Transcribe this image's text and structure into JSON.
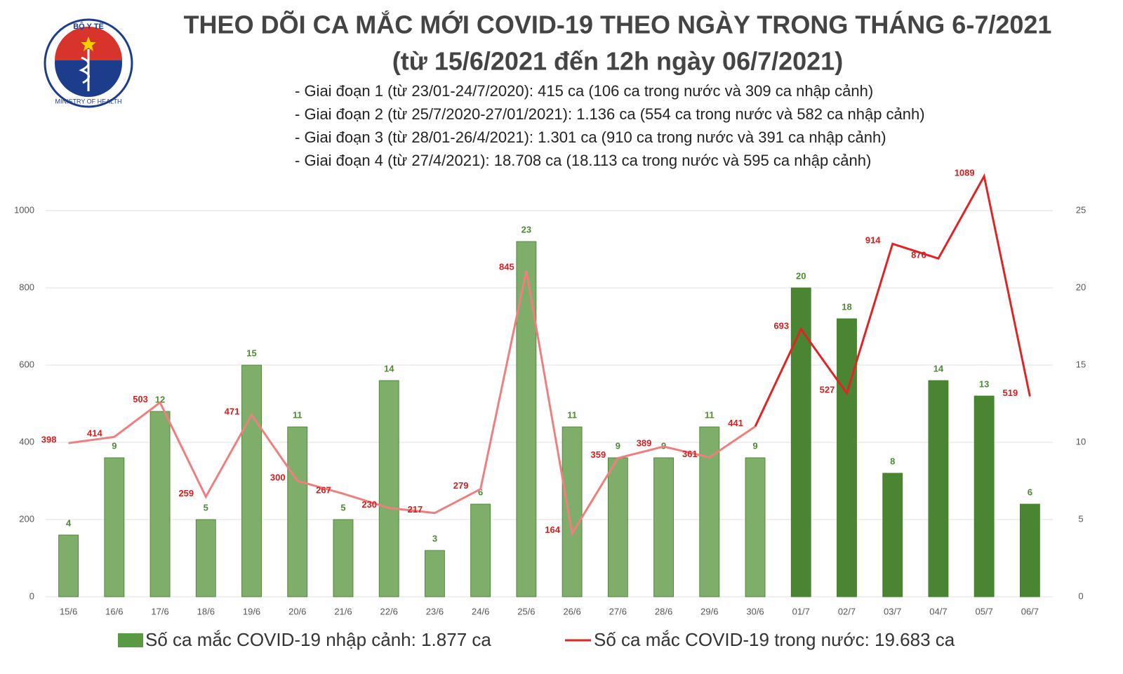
{
  "chart_data": {
    "type": "bar-line",
    "title": "THEO DÕI CA MẮC MỚI COVID-19 THEO NGÀY TRONG THÁNG 6-7/2021",
    "subtitle": "(từ 15/6/2021 đến 12h ngày 06/7/2021)",
    "notes": [
      "- Giai đoạn 1 (từ 23/01-24/7/2020): 415 ca (106 ca trong nước và 309 ca nhập cảnh)",
      "- Giai đoạn 2 (từ 25/7/2020-27/01/2021): 1.136 ca (554 ca trong nước và 582 ca nhập cảnh)",
      "- Giai đoạn 3 (từ 28/01-26/4/2021): 1.301 ca (910 ca trong nước và 391 ca nhập cảnh)",
      "- Giai đoạn 4 (từ 27/4/2021): 18.708 ca (18.113 ca trong nước và 595 ca nhập cảnh)"
    ],
    "logo_text": {
      "top": "BỘ Y TẾ",
      "bottom": "MINISTRY OF HEALTH"
    },
    "categories": [
      "15/6",
      "16/6",
      "17/6",
      "18/6",
      "19/6",
      "20/6",
      "21/6",
      "22/6",
      "23/6",
      "24/6",
      "25/6",
      "26/6",
      "27/6",
      "28/6",
      "29/6",
      "30/6",
      "01/7",
      "02/7",
      "03/7",
      "04/7",
      "05/7",
      "06/7"
    ],
    "series": [
      {
        "name": "Số ca mắc COVID-19 nhập cảnh: 1.877 ca",
        "kind": "bar",
        "axis": "y2",
        "color": "#5b9a44",
        "colors": [
          "#7fae6b",
          "#7fae6b",
          "#7fae6b",
          "#7fae6b",
          "#7fae6b",
          "#7fae6b",
          "#7fae6b",
          "#7fae6b",
          "#7fae6b",
          "#7fae6b",
          "#7fae6b",
          "#7fae6b",
          "#7fae6b",
          "#7fae6b",
          "#7fae6b",
          "#7fae6b",
          "#4a8632",
          "#4a8632",
          "#4a8632",
          "#4a8632",
          "#4a8632",
          "#4a8632"
        ],
        "values": [
          4,
          9,
          12,
          5,
          15,
          11,
          5,
          14,
          3,
          6,
          23,
          11,
          9,
          9,
          11,
          9,
          20,
          18,
          8,
          14,
          13,
          6
        ]
      },
      {
        "name": "Số ca mắc COVID-19 trong nước: 19.683 ca",
        "kind": "line",
        "color": "#e02424",
        "colors": [
          "#ef7f7f",
          "#ef7f7f",
          "#ef7f7f",
          "#ef7f7f",
          "#ef7f7f",
          "#ef7f7f",
          "#ef7f7f",
          "#ef7f7f",
          "#ef7f7f",
          "#ef7f7f",
          "#ef7f7f",
          "#ef7f7f",
          "#ef7f7f",
          "#ef7f7f",
          "#ef7f7f",
          "#ef7f7f",
          "#e02424",
          "#e02424",
          "#e02424",
          "#e02424",
          "#e02424",
          "#e02424"
        ],
        "values": [
          398,
          414,
          503,
          259,
          471,
          300,
          267,
          230,
          217,
          279,
          845,
          164,
          359,
          389,
          361,
          441,
          693,
          527,
          914,
          876,
          1089,
          519
        ]
      }
    ],
    "ylim": [
      0,
      1000
    ],
    "yticks": [
      0,
      200,
      400,
      600,
      800,
      1000
    ],
    "y2lim": [
      0,
      25
    ],
    "y2ticks": [
      0,
      5,
      10,
      15,
      20,
      25
    ],
    "grid": true
  }
}
